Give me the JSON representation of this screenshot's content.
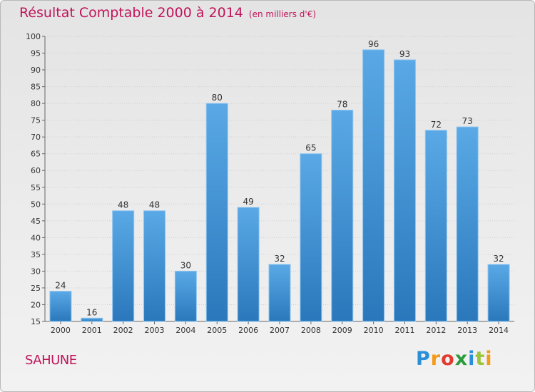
{
  "title_main": "Résultat Comptable 2000 à 2014",
  "title_sub": "(en milliers d'€)",
  "commune": "SAHUNE",
  "logo": [
    "P",
    "r",
    "o",
    "x",
    "i",
    "t",
    "i"
  ],
  "colors": {
    "bar_light": "#5aa9e6",
    "bar_dark": "#2a78bb",
    "title": "#c0145a",
    "grid": "#cfcfcf"
  },
  "chart_data": {
    "type": "bar",
    "title": "Résultat Comptable 2000 à 2014 (en milliers d'€)",
    "xlabel": "",
    "ylabel": "",
    "categories": [
      "2000",
      "2001",
      "2002",
      "2003",
      "2004",
      "2005",
      "2006",
      "2007",
      "2008",
      "2009",
      "2010",
      "2011",
      "2012",
      "2013",
      "2014"
    ],
    "values": [
      24,
      16,
      48,
      48,
      30,
      80,
      49,
      32,
      65,
      78,
      96,
      93,
      72,
      73,
      32
    ],
    "ylim": [
      15,
      100
    ],
    "yticks": [
      15,
      20,
      25,
      30,
      35,
      40,
      45,
      50,
      55,
      60,
      65,
      70,
      75,
      80,
      85,
      90,
      95,
      100
    ],
    "grid": true
  }
}
